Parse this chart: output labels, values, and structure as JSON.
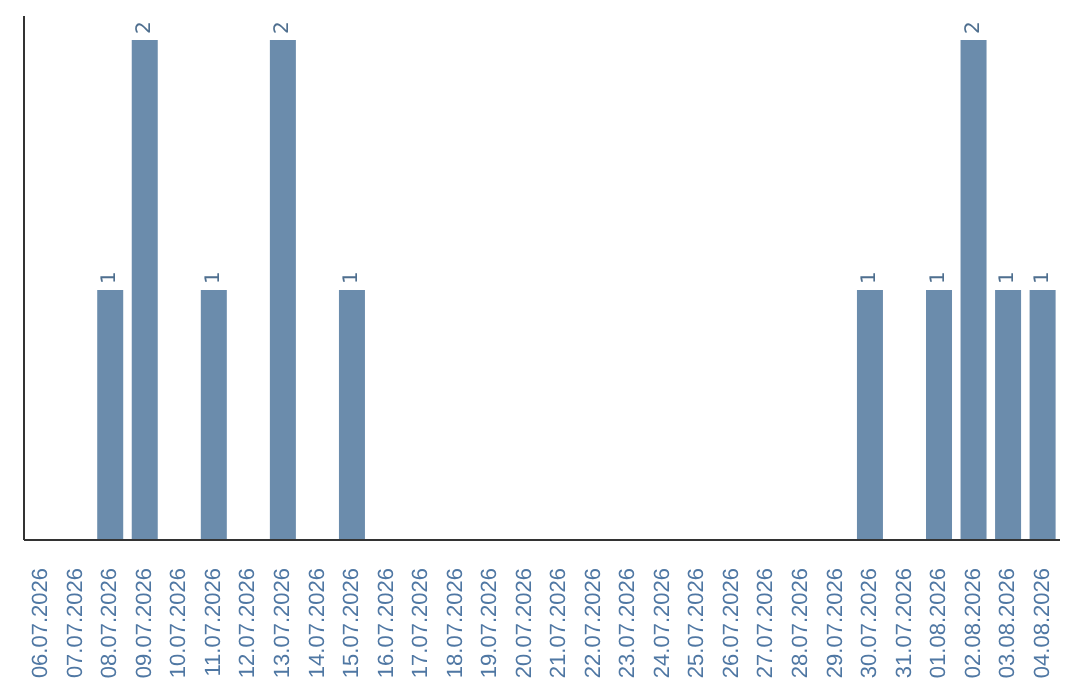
{
  "chart_data": {
    "type": "bar",
    "categories": [
      "06.07.2026",
      "07.07.2026",
      "08.07.2026",
      "09.07.2026",
      "10.07.2026",
      "11.07.2026",
      "12.07.2026",
      "13.07.2026",
      "14.07.2026",
      "15.07.2026",
      "16.07.2026",
      "17.07.2026",
      "18.07.2026",
      "19.07.2026",
      "20.07.2026",
      "21.07.2026",
      "22.07.2026",
      "23.07.2026",
      "24.07.2026",
      "25.07.2026",
      "26.07.2026",
      "27.07.2026",
      "28.07.2026",
      "29.07.2026",
      "30.07.2026",
      "31.07.2026",
      "01.08.2026",
      "02.08.2026",
      "03.08.2026",
      "04.08.2026"
    ],
    "values": [
      0,
      0,
      1,
      2,
      0,
      1,
      0,
      2,
      0,
      1,
      0,
      0,
      0,
      0,
      0,
      0,
      0,
      0,
      0,
      0,
      0,
      0,
      0,
      0,
      1,
      0,
      1,
      2,
      1,
      1
    ],
    "value_labels": [
      null,
      null,
      "1",
      "2",
      null,
      "1",
      null,
      "2",
      null,
      "1",
      null,
      null,
      null,
      null,
      null,
      null,
      null,
      null,
      null,
      null,
      null,
      null,
      null,
      null,
      "1",
      null,
      "1",
      "2",
      "1",
      "1"
    ],
    "color": "#6b8cac",
    "grid": false,
    "legend": false
  }
}
